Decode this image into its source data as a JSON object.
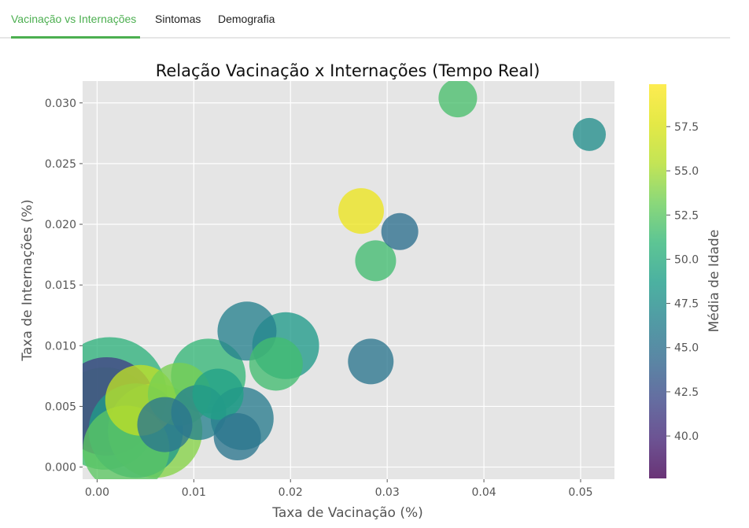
{
  "tabs": [
    {
      "label": "Vacinação vs Internações",
      "active": true
    },
    {
      "label": "Sintomas",
      "active": false
    },
    {
      "label": "Demografia",
      "active": false
    }
  ],
  "colors": {
    "accent": "#4caf50",
    "plot_bg": "#e5e5e5",
    "grid": "#ffffff"
  },
  "chart_data": {
    "type": "scatter",
    "title": "Relação Vacinação x Internações (Tempo Real)",
    "xlabel": "Taxa de Vacinação (%)",
    "ylabel": "Taxa de Internações (%)",
    "xlim": [
      -0.0015,
      0.0535
    ],
    "ylim": [
      -0.001,
      0.0318
    ],
    "xticks": [
      0.0,
      0.01,
      0.02,
      0.03,
      0.04,
      0.05
    ],
    "xtick_labels": [
      "0.00",
      "0.01",
      "0.02",
      "0.03",
      "0.04",
      "0.05"
    ],
    "yticks": [
      0.0,
      0.005,
      0.01,
      0.015,
      0.02,
      0.025,
      0.03
    ],
    "ytick_labels": [
      "0.000",
      "0.005",
      "0.010",
      "0.015",
      "0.020",
      "0.025",
      "0.030"
    ],
    "grid": true,
    "colormap": "viridis",
    "colorbar": {
      "label": "Média de Idade",
      "range": [
        37.6,
        59.9
      ],
      "ticks": [
        40.0,
        42.5,
        45.0,
        47.5,
        50.0,
        52.5,
        55.0,
        57.5
      ],
      "tick_labels": [
        "40.0",
        "42.5",
        "45.0",
        "47.5",
        "50.0",
        "52.5",
        "55.0",
        "57.5"
      ]
    },
    "points": [
      {
        "x": 0.0013,
        "y": 0.006,
        "age": 50.5,
        "size": 1.45
      },
      {
        "x": 0.0008,
        "y": 0.004,
        "age": 51.5,
        "size": 1.3
      },
      {
        "x": 0.0045,
        "y": 0.0055,
        "age": 56.0,
        "size": 0.9
      },
      {
        "x": 0.0085,
        "y": 0.006,
        "age": 53.5,
        "size": 0.8
      },
      {
        "x": 0.0115,
        "y": 0.0075,
        "age": 51.0,
        "size": 0.95
      },
      {
        "x": 0.006,
        "y": 0.003,
        "age": 54.0,
        "size": 1.2
      },
      {
        "x": 0.003,
        "y": 0.0015,
        "age": 52.5,
        "size": 1.1
      },
      {
        "x": 0.001,
        "y": 0.005,
        "age": 41.5,
        "size": 1.25
      },
      {
        "x": 0.0125,
        "y": 0.006,
        "age": 49.0,
        "size": 0.65
      },
      {
        "x": 0.0105,
        "y": 0.0045,
        "age": 46.5,
        "size": 0.7
      },
      {
        "x": 0.015,
        "y": 0.004,
        "age": 46.0,
        "size": 0.8
      },
      {
        "x": 0.0145,
        "y": 0.0025,
        "age": 45.5,
        "size": 0.6
      },
      {
        "x": 0.004,
        "y": 0.003,
        "age": 48.5,
        "size": 1.2
      },
      {
        "x": 0.007,
        "y": 0.0035,
        "age": 45.5,
        "size": 0.7
      },
      {
        "x": 0.0155,
        "y": 0.0112,
        "age": 46.5,
        "size": 0.75
      },
      {
        "x": 0.0185,
        "y": 0.0085,
        "age": 51.5,
        "size": 0.68
      },
      {
        "x": 0.0195,
        "y": 0.01,
        "age": 48.5,
        "size": 0.85
      },
      {
        "x": 0.0283,
        "y": 0.0087,
        "age": 45.5,
        "size": 0.58
      },
      {
        "x": 0.0273,
        "y": 0.0211,
        "age": 58.8,
        "size": 0.58
      },
      {
        "x": 0.0313,
        "y": 0.0194,
        "age": 45.0,
        "size": 0.47
      },
      {
        "x": 0.0288,
        "y": 0.017,
        "age": 51.5,
        "size": 0.52
      },
      {
        "x": 0.0373,
        "y": 0.0304,
        "age": 51.8,
        "size": 0.49
      },
      {
        "x": 0.0509,
        "y": 0.0274,
        "age": 47.5,
        "size": 0.42
      }
    ]
  }
}
